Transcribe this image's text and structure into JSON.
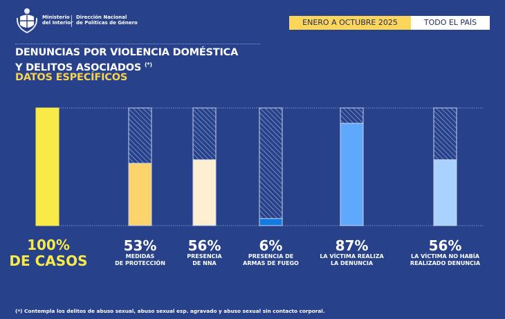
{
  "header": {
    "org_line1": "Ministerio",
    "org_line2": "del Interior",
    "dept_line1": "Dirección Nacional",
    "dept_line2": "de Políticas de Género",
    "logo_icon": "uruguay-coat-of-arms-icon",
    "period": "ENERO A OCTUBRE 2025",
    "scope": "TODO EL PAÍS"
  },
  "title": {
    "line1": "DENUNCIAS POR VIOLENCIA DOMÉSTICA",
    "line2": "Y DELITOS ASOCIADOS",
    "marker": "(*)",
    "subtitle": "DATOS ESPECÍFICOS"
  },
  "colors": {
    "background": "#27418b",
    "accent_yellow": "#f9ea48",
    "subtitle_yellow": "#f7d34f"
  },
  "chart_data": {
    "type": "bar",
    "title": "DENUNCIAS POR VIOLENCIA DOMÉSTICA Y DELITOS ASOCIADOS (*) — DATOS ESPECÍFICOS",
    "ylim": [
      0,
      100
    ],
    "grid": false,
    "legend": "none",
    "categories": [
      "DE CASOS",
      "MEDIDAS DE PROTECCIÓN",
      "PRESENCIA DE NNA",
      "PRESENCIA DE ARMAS DE FUEGO",
      "LA VÍCTIMA REALIZA LA DENUNCIA",
      "LA VÍCTIMA NO HABÍA REALIZADO DENUNCIA"
    ],
    "bars": [
      {
        "value": 100,
        "label": "100%",
        "caption1": "DE CASOS",
        "caption2": "",
        "color": "#f9ea48",
        "hatched_remainder": false
      },
      {
        "value": 53,
        "label": "53%",
        "caption1": "MEDIDAS",
        "caption2": "DE PROTECCIÓN",
        "color": "#fdd36c",
        "hatched_remainder": true
      },
      {
        "value": 56,
        "label": "56%",
        "caption1": "PRESENCIA",
        "caption2": "DE NNA",
        "color": "#feeed2",
        "hatched_remainder": true
      },
      {
        "value": 6,
        "label": "6%",
        "caption1": "PRESENCIA DE",
        "caption2": "ARMAS DE FUEGO",
        "color": "#137ae0",
        "hatched_remainder": true
      },
      {
        "value": 87,
        "label": "87%",
        "caption1": "LA VÍCTIMA REALIZA",
        "caption2": "LA DENUNCIA",
        "color": "#5ea9fd",
        "hatched_remainder": true
      },
      {
        "value": 56,
        "label": "56%",
        "caption1": "LA VÍCTIMA NO HABÍA",
        "caption2": "REALIZADO DENUNCIA",
        "color": "#a9d3fe",
        "hatched_remainder": true
      }
    ]
  },
  "footnote": "(*) Contempla los delitos de abuso sexual, abuso sexual esp. agravado y abuso sexual sin contacto corporal."
}
